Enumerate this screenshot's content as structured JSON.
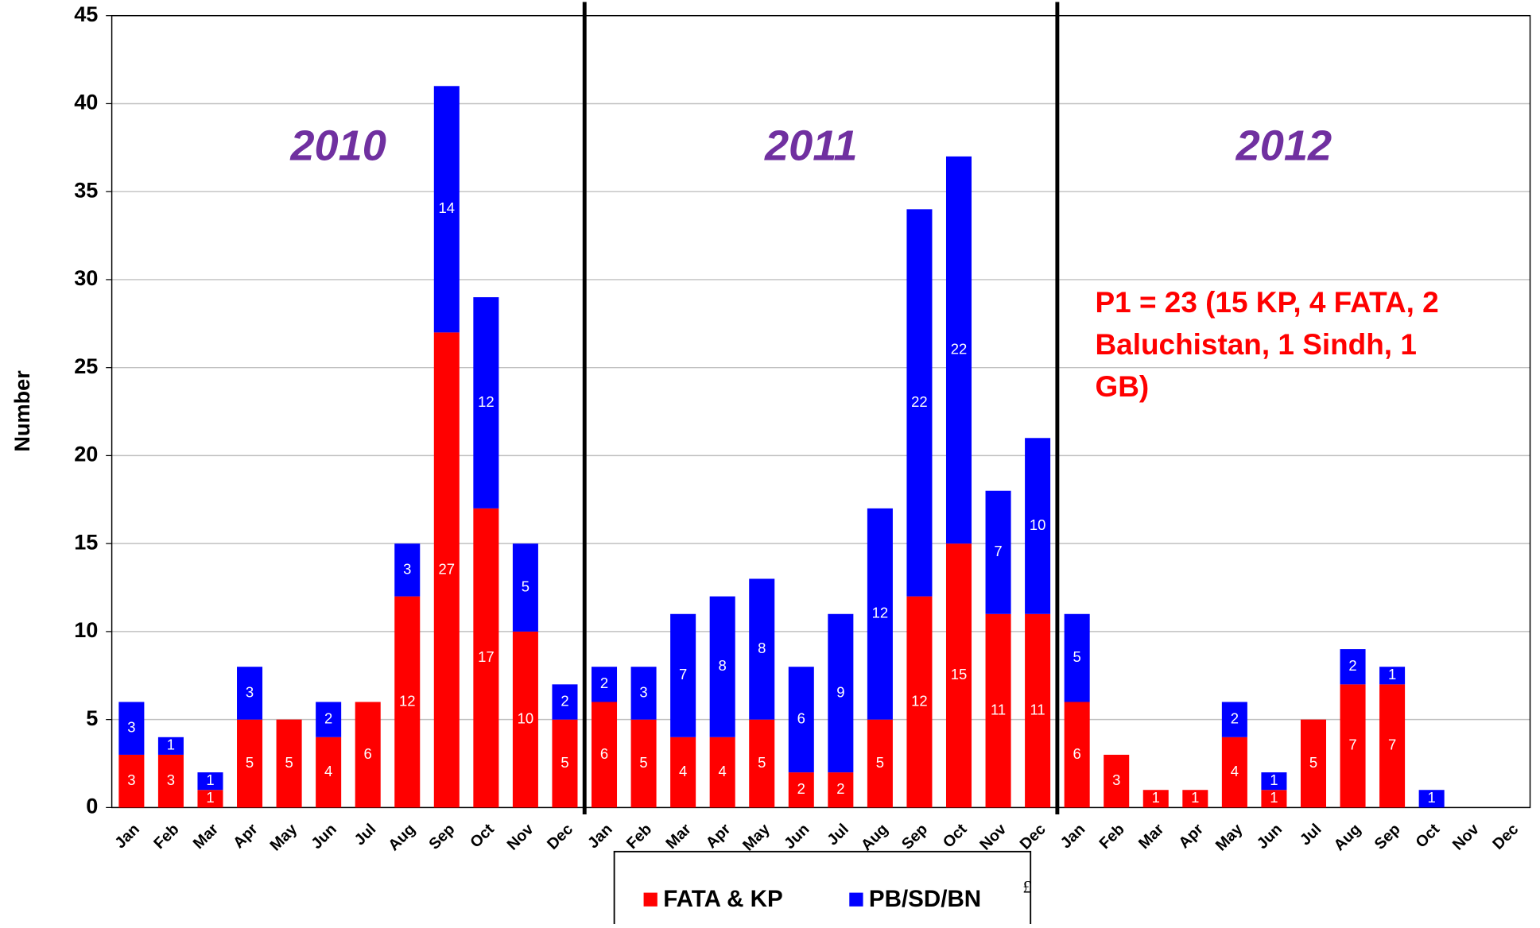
{
  "chart_data": {
    "type": "stacked_bar",
    "y_label": "Number",
    "categories": [
      "Jan",
      "Feb",
      "Mar",
      "Apr",
      "May",
      "Jun",
      "Jul",
      "Aug",
      "Sep",
      "Oct",
      "Nov",
      "Dec",
      "Jan",
      "Feb",
      "Mar",
      "Apr",
      "May",
      "Jun",
      "Jul",
      "Aug",
      "Sep",
      "Oct",
      "Nov",
      "Dec",
      "Jan",
      "Feb",
      "Mar",
      "Apr",
      "May",
      "Jun",
      "Jul",
      "Aug",
      "Sep",
      "Oct",
      "Nov",
      "Dec"
    ],
    "series": [
      {
        "name": "FATA & KP",
        "color": "#ff0000",
        "values": [
          3,
          3,
          1,
          5,
          5,
          4,
          6,
          12,
          27,
          17,
          10,
          5,
          6,
          5,
          4,
          4,
          5,
          2,
          2,
          5,
          12,
          15,
          11,
          11,
          6,
          3,
          1,
          1,
          4,
          1,
          5,
          7,
          7,
          null,
          null,
          null
        ]
      },
      {
        "name": "PB/SD/BN",
        "color": "#0000ff",
        "values": [
          3,
          1,
          1,
          3,
          null,
          2,
          null,
          3,
          14,
          12,
          5,
          2,
          2,
          3,
          7,
          8,
          8,
          6,
          9,
          12,
          22,
          22,
          7,
          10,
          5,
          null,
          null,
          null,
          2,
          1,
          null,
          2,
          1,
          1,
          null,
          null
        ]
      }
    ],
    "ylim": [
      0,
      45
    ],
    "yticks": [
      0,
      5,
      10,
      15,
      20,
      25,
      30,
      35,
      40,
      45
    ],
    "grid": true,
    "period_labels": [
      "2010",
      "2011",
      "2012"
    ],
    "annotation": [
      "P1 = 23 (15 KP, 4 FATA, 2",
      "Baluchistan, 1 Sindh, 1",
      "GB)"
    ],
    "footnote": "£",
    "legend": "bottom"
  }
}
